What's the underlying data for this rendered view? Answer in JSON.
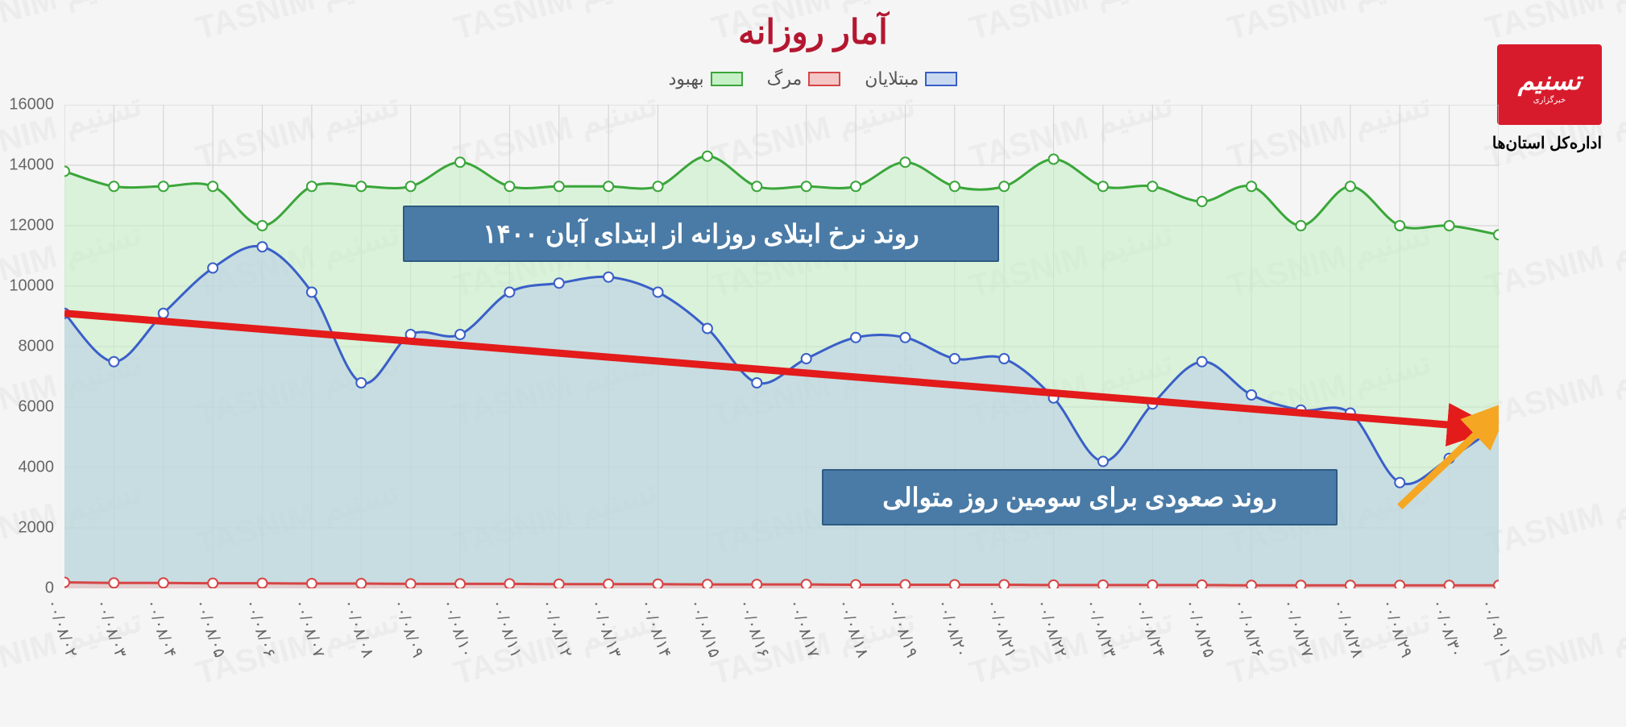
{
  "title": "آمار روزانه",
  "logo": {
    "main": "تسنیم",
    "sub": "خبرگزاری",
    "caption": "اداره‌کل استان‌ها"
  },
  "legend": [
    {
      "label": "مبتلایان",
      "fill": "#c9d9f0",
      "stroke": "#3a5fc8"
    },
    {
      "label": "مرگ",
      "fill": "#f5c6c6",
      "stroke": "#d64545"
    },
    {
      "label": "بهبود",
      "fill": "#c6f0c6",
      "stroke": "#3aa63a"
    }
  ],
  "chart": {
    "type": "area",
    "ylim": [
      0,
      16000
    ],
    "ytick_step": 2000,
    "background": "#f5f5f5",
    "grid_color": "#d0d0d0",
    "categories": [
      "۰۰/۰۸/۰۲",
      "۰۰/۰۸/۰۳",
      "۰۰/۰۸/۰۴",
      "۰۰/۰۸/۰۵",
      "۰۰/۰۸/۰۶",
      "۰۰/۰۸/۰۷",
      "۰۰/۰۸/۰۸",
      "۰۰/۰۸/۰۹",
      "۰۰/۰۸/۱۰",
      "۰۰/۰۸/۱۱",
      "۰۰/۰۸/۱۲",
      "۰۰/۰۸/۱۳",
      "۰۰/۰۸/۱۴",
      "۰۰/۰۸/۱۵",
      "۰۰/۰۸/۱۶",
      "۰۰/۰۸/۱۷",
      "۰۰/۰۸/۱۸",
      "۰۰/۰۸/۱۹",
      "۰۰/۰۸/۲۰",
      "۰۰/۰۸/۲۱",
      "۰۰/۰۸/۲۲",
      "۰۰/۰۸/۲۳",
      "۰۰/۰۸/۲۴",
      "۰۰/۰۸/۲۵",
      "۰۰/۰۸/۲۶",
      "۰۰/۰۸/۲۷",
      "۰۰/۰۸/۲۸",
      "۰۰/۰۸/۲۹",
      "۰۰/۰۸/۳۰",
      "۰۰/۰۹/۰۱"
    ],
    "series": {
      "recovered": {
        "color": "#3aa63a",
        "fill": "#c6f0c6",
        "fill_opacity": 0.6,
        "values": [
          13800,
          13300,
          13300,
          13300,
          12000,
          13300,
          13300,
          13300,
          14100,
          13300,
          13300,
          13300,
          13300,
          14300,
          13300,
          13300,
          13300,
          14100,
          13300,
          13300,
          14200,
          13300,
          13300,
          12800,
          13300,
          12000,
          13300,
          12000,
          12000,
          11700
        ]
      },
      "infected": {
        "color": "#3a5fc8",
        "fill": "#b8cce8",
        "fill_opacity": 0.55,
        "values": [
          9100,
          7500,
          9100,
          10600,
          11300,
          9800,
          6800,
          8400,
          8400,
          9800,
          10100,
          10300,
          9800,
          8600,
          6800,
          7600,
          8300,
          8300,
          7600,
          7600,
          6300,
          4200,
          6100,
          7500,
          6400,
          5900,
          5800,
          3500,
          4300,
          5400
        ]
      },
      "deaths": {
        "color": "#d64545",
        "fill": "#f5c6c6",
        "fill_opacity": 0.6,
        "values": [
          200,
          180,
          180,
          170,
          170,
          160,
          160,
          150,
          150,
          150,
          140,
          140,
          140,
          130,
          130,
          130,
          120,
          120,
          120,
          120,
          110,
          110,
          110,
          110,
          100,
          100,
          100,
          100,
          100,
          100
        ]
      }
    },
    "marker_radius": 6,
    "line_width": 3
  },
  "annotations": {
    "top_box": "روند نرخ ابتلای روزانه از ابتدای آبان ۱۴۰۰",
    "bottom_box": "روند صعودی برای سومین روز متوالی",
    "trend_line": {
      "color": "#e31b1b",
      "width": 9,
      "y_start": 9100,
      "y_end": 5300
    },
    "up_arrow": {
      "color": "#f5a623",
      "width": 9
    }
  }
}
